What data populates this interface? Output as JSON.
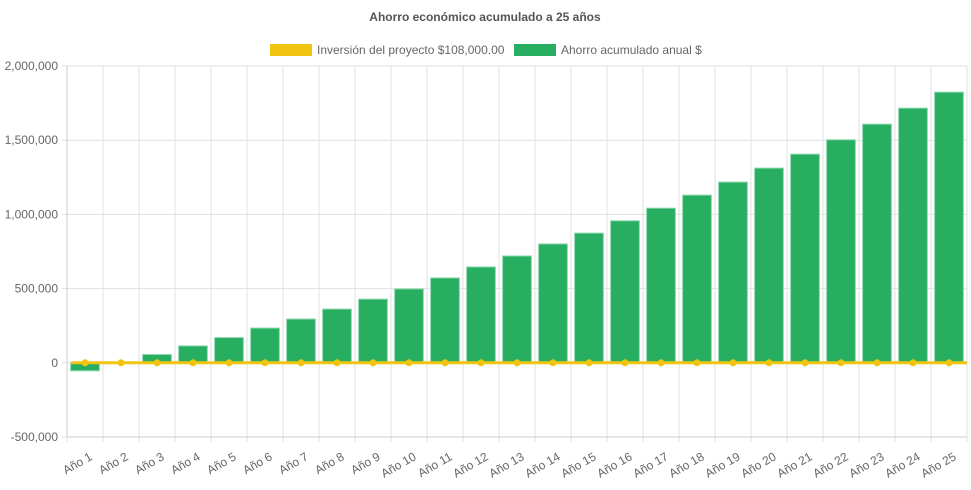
{
  "chart_data": {
    "type": "bar",
    "title": "Ahorro económico acumulado a 25 años",
    "categories": [
      "Año 1",
      "Año 2",
      "Año 3",
      "Año 4",
      "Año 5",
      "Año 6",
      "Año 7",
      "Año 8",
      "Año 9",
      "Año 10",
      "Año 11",
      "Año 12",
      "Año 13",
      "Año 14",
      "Año 15",
      "Año 16",
      "Año 17",
      "Año 18",
      "Año 19",
      "Año 20",
      "Año 21",
      "Año 22",
      "Año 23",
      "Año 24",
      "Año 25"
    ],
    "series": [
      {
        "name": "Inversión del proyecto $108,000.00",
        "type": "line",
        "color": "#f1c40f",
        "values": [
          0,
          0,
          0,
          0,
          0,
          0,
          0,
          0,
          0,
          0,
          0,
          0,
          0,
          0,
          0,
          0,
          0,
          0,
          0,
          0,
          0,
          0,
          0,
          0,
          0
        ]
      },
      {
        "name": "Ahorro acumulado anual $",
        "type": "bar",
        "color": "#27ae60",
        "values": [
          -54000,
          0,
          56000,
          114000,
          170000,
          234000,
          295000,
          362000,
          429000,
          498000,
          572000,
          646000,
          720000,
          801000,
          874000,
          957000,
          1042000,
          1130000,
          1218000,
          1312000,
          1406000,
          1503000,
          1608000,
          1716000,
          1824000
        ]
      }
    ],
    "ylim": [
      -500000,
      2000000
    ],
    "yticks": [
      2000000,
      1500000,
      1000000,
      500000,
      0,
      -500000
    ],
    "ytick_labels": [
      "2,000,000",
      "1,500,000",
      "1,000,000",
      "500,000",
      "0",
      "-500,000"
    ],
    "grid": true,
    "legend": "top"
  }
}
